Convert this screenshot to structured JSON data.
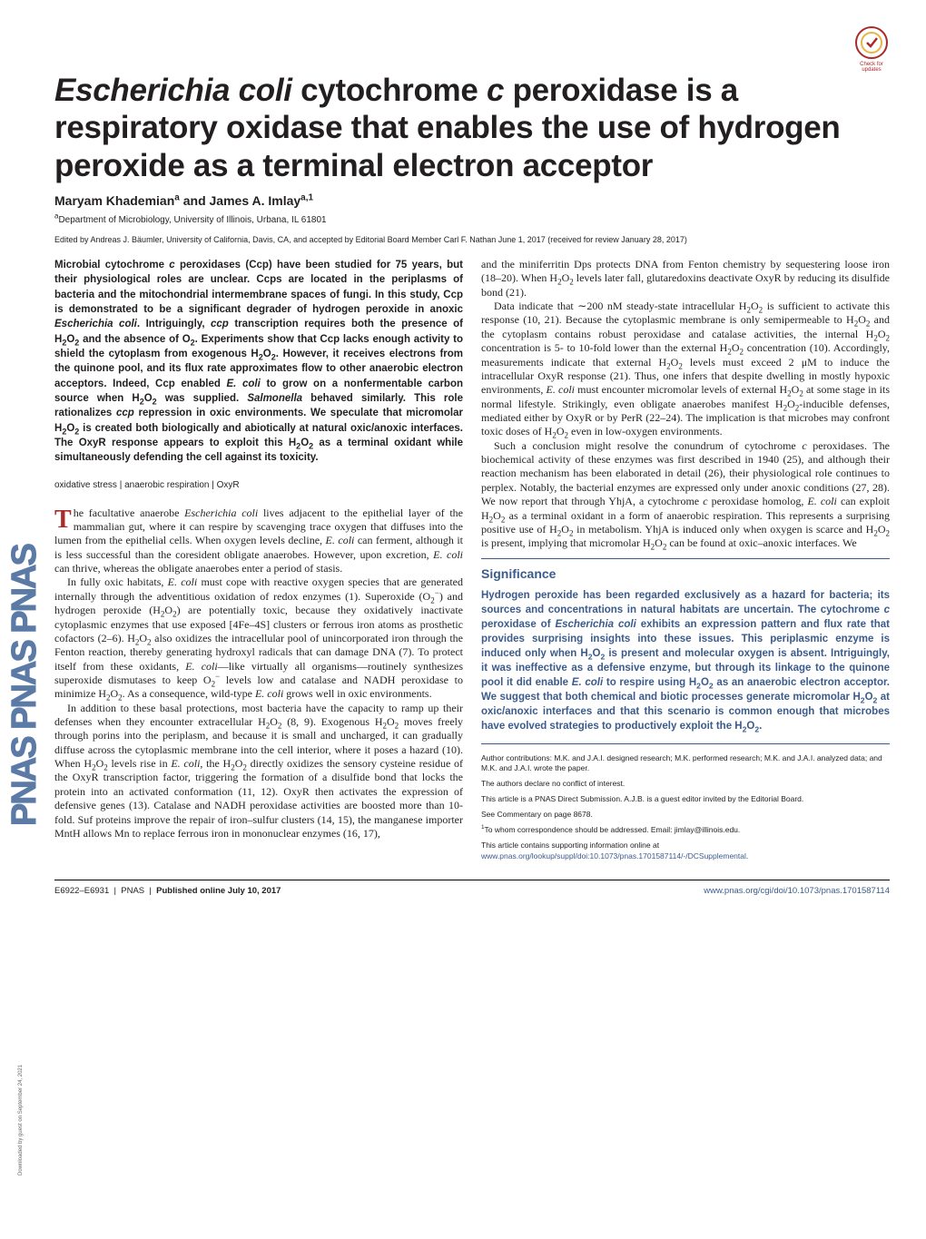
{
  "journal_sidebar": "PNAS  PNAS  PNAS",
  "download_note": "Downloaded by guest on September 24, 2021",
  "check_updates_label": "Check for updates",
  "title_html": "<em>Escherichia coli</em> cytochrome <em>c</em> peroxidase is a respiratory oxidase that enables the use of hydrogen peroxide as a terminal electron acceptor",
  "authors_html": "Maryam Khademian<sup>a</sup> and James A. Imlay<sup>a,1</sup>",
  "affiliation_html": "<sup>a</sup>Department of Microbiology, University of Illinois, Urbana, IL 61801",
  "editor_note": "Edited by Andreas J. Bäumler, University of California, Davis, CA, and accepted by Editorial Board Member Carl F. Nathan June 1, 2017 (received for review January 28, 2017)",
  "abstract_html": "Microbial cytochrome <em>c</em> peroxidases (Ccp) have been studied for 75 years, but their physiological roles are unclear. Ccps are located in the periplasms of bacteria and the mitochondrial intermembrane spaces of fungi. In this study, Ccp is demonstrated to be a significant degrader of hydrogen peroxide in anoxic <em>Escherichia coli</em>. Intriguingly, <em>ccp</em> transcription requires both the presence of H<sub>2</sub>O<sub>2</sub> and the absence of O<sub>2</sub>. Experiments show that Ccp lacks enough activity to shield the cytoplasm from exogenous H<sub>2</sub>O<sub>2</sub>. However, it receives electrons from the quinone pool, and its flux rate approximates flow to other anaerobic electron acceptors. Indeed, Ccp enabled <em>E. coli</em> to grow on a nonfermentable carbon source when H<sub>2</sub>O<sub>2</sub> was supplied. <em>Salmonella</em> behaved similarly. This role rationalizes <em>ccp</em> repression in oxic environments. We speculate that micromolar H<sub>2</sub>O<sub>2</sub> is created both biologically and abiotically at natural oxic/anoxic interfaces. The OxyR response appears to exploit this H<sub>2</sub>O<sub>2</sub> as a terminal oxidant while simultaneously defending the cell against its toxicity.",
  "keywords": "oxidative stress | anaerobic respiration | OxyR",
  "col1_html": "<p class=\"noindent\"><span class=\"dropcap\">T</span>he facultative anaerobe <em>Escherichia coli</em> lives adjacent to the epithelial layer of the mammalian gut, where it can respire by scavenging trace oxygen that diffuses into the lumen from the epithelial cells. When oxygen levels decline, <em>E. coli</em> can ferment, although it is less successful than the coresident obligate anaerobes. However, upon excretion, <em>E. coli</em> can thrive, whereas the obligate anaerobes enter a period of stasis.</p><p>In fully oxic habitats, <em>E. coli</em> must cope with reactive oxygen species that are generated internally through the adventitious oxidation of redox enzymes (1). Superoxide (O<sub>2</sub><sup>−</sup>) and hydrogen peroxide (H<sub>2</sub>O<sub>2</sub>) are potentially toxic, because they oxidatively inactivate cytoplasmic enzymes that use exposed [4Fe–4S] clusters or ferrous iron atoms as prosthetic cofactors (2–6). H<sub>2</sub>O<sub>2</sub> also oxidizes the intracellular pool of unincorporated iron through the Fenton reaction, thereby generating hydroxyl radicals that can damage DNA (7). To protect itself from these oxidants, <em>E. coli</em>—like virtually all organisms—routinely synthesizes superoxide dismutases to keep O<sub>2</sub><sup>−</sup> levels low and catalase and NADH peroxidase to minimize H<sub>2</sub>O<sub>2</sub>. As a consequence, wild-type <em>E. coli</em> grows well in oxic environments.</p><p>In addition to these basal protections, most bacteria have the capacity to ramp up their defenses when they encounter extracellular H<sub>2</sub>O<sub>2</sub> (8, 9). Exogenous H<sub>2</sub>O<sub>2</sub> moves freely through porins into the periplasm, and because it is small and uncharged, it can gradually diffuse across the cytoplasmic membrane into the cell interior, where it poses a hazard (10). When H<sub>2</sub>O<sub>2</sub> levels rise in <em>E. coli</em>, the H<sub>2</sub>O<sub>2</sub> directly oxidizes the sensory cysteine residue of the OxyR transcription factor, triggering the formation of a disulfide bond that locks the protein into an activated conformation (11, 12). OxyR then activates the expression of defensive genes (13). Catalase and NADH peroxidase activities are boosted more than 10-fold. Suf proteins improve the repair of iron–sulfur clusters (14, 15), the manganese importer MntH allows Mn to replace ferrous iron in mononuclear enzymes (16, 17),</p>",
  "col2_top_html": "<p class=\"noindent\">and the miniferritin Dps protects DNA from Fenton chemistry by sequestering loose iron (18–20). When H<sub>2</sub>O<sub>2</sub> levels later fall, glutaredoxins deactivate OxyR by reducing its disulfide bond (21).</p><p>Data indicate that ∼200 nM steady-state intracellular H<sub>2</sub>O<sub>2</sub> is sufficient to activate this response (10, 21). Because the cytoplasmic membrane is only semipermeable to H<sub>2</sub>O<sub>2</sub> and the cytoplasm contains robust peroxidase and catalase activities, the internal H<sub>2</sub>O<sub>2</sub> concentration is 5- to 10-fold lower than the external H<sub>2</sub>O<sub>2</sub> concentration (10). Accordingly, measurements indicate that external H<sub>2</sub>O<sub>2</sub> levels must exceed 2 μM to induce the intracellular OxyR response (21). Thus, one infers that despite dwelling in mostly hypoxic environments, <em>E. coli</em> must encounter micromolar levels of external H<sub>2</sub>O<sub>2</sub> at some stage in its normal lifestyle. Strikingly, even obligate anaerobes manifest H<sub>2</sub>O<sub>2</sub>-inducible defenses, mediated either by OxyR or by PerR (22–24). The implication is that microbes may confront toxic doses of H<sub>2</sub>O<sub>2</sub> even in low-oxygen environments.</p><p>Such a conclusion might resolve the conundrum of cytochrome <em>c</em> peroxidases. The biochemical activity of these enzymes was first described in 1940 (25), and although their reaction mechanism has been elaborated in detail (26), their physiological role continues to perplex. Notably, the bacterial enzymes are expressed only under anoxic conditions (27, 28). We now report that through YhjA, a cytochrome <em>c</em> peroxidase homolog, <em>E. coli</em> can exploit H<sub>2</sub>O<sub>2</sub> as a terminal oxidant in a form of anaerobic respiration. This represents a surprising positive use of H<sub>2</sub>O<sub>2</sub> in metabolism. YhjA is induced only when oxygen is scarce and H<sub>2</sub>O<sub>2</sub> is present, implying that micromolar H<sub>2</sub>O<sub>2</sub> can be found at oxic–anoxic interfaces. We</p>",
  "significance": {
    "title": "Significance",
    "body_html": "Hydrogen peroxide has been regarded exclusively as a hazard for bacteria; its sources and concentrations in natural habitats are uncertain. The cytochrome <em>c</em> peroxidase of <em>Escherichia coli</em> exhibits an expression pattern and flux rate that provides surprising insights into these issues. This periplasmic enzyme is induced only when H<sub>2</sub>O<sub>2</sub> is present and molecular oxygen is absent. Intriguingly, it was ineffective as a defensive enzyme, but through its linkage to the quinone pool it did enable <em>E. coli</em> to respire using H<sub>2</sub>O<sub>2</sub> as an anaerobic electron acceptor. We suggest that both chemical and biotic processes generate micromolar H<sub>2</sub>O<sub>2</sub> at oxic/anoxic interfaces and that this scenario is common enough that microbes have evolved strategies to productively exploit the H<sub>2</sub>O<sub>2</sub>."
  },
  "footnotes": {
    "contributions": "Author contributions: M.K. and J.A.I. designed research; M.K. performed research; M.K. and J.A.I. analyzed data; and M.K. and J.A.I. wrote the paper.",
    "conflict": "The authors declare no conflict of interest.",
    "submission": "This article is a PNAS Direct Submission. A.J.B. is a guest editor invited by the Editorial Board.",
    "commentary": "See Commentary on page 8678.",
    "correspondence_html": "<sup>1</sup>To whom correspondence should be addressed. Email: jimlay@illinois.edu.",
    "supporting_html": "This article contains supporting information online at <a href=\"#\">www.pnas.org/lookup/suppl/doi:10.1073/pnas.1701587114/-/DCSupplemental</a>."
  },
  "footer": {
    "left_html": "E6922–E6931 &nbsp;|&nbsp; PNAS &nbsp;|&nbsp; <strong>Published online July 10, 2017</strong>",
    "right_html": "www.pnas.org/cgi/doi/10.1073/pnas.1701587114"
  },
  "colors": {
    "pnas_blue": "#5b7ba6",
    "significance_blue": "#3b5b8c",
    "crossmark_red": "#aa2a2a",
    "text": "#231f20"
  }
}
